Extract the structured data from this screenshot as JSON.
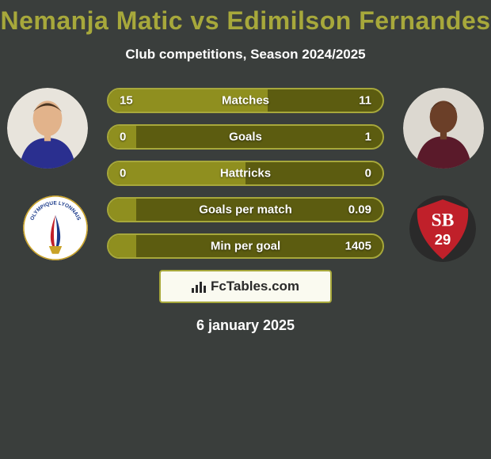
{
  "background_color": "#3a3e3c",
  "title": {
    "text": "Nemanja Matic vs Edimilson Fernandes",
    "color": "#a7a83b",
    "fontsize": 32,
    "fontweight": 800
  },
  "subtitle": {
    "text": "Club competitions, Season 2024/2025",
    "color": "#ffffff",
    "fontsize": 17,
    "fontweight": 600
  },
  "colors": {
    "bar_left": "#8f8f1f",
    "bar_right": "#5c5c10",
    "bar_border": "#a7a83b",
    "text_on_bar": "#ffffff"
  },
  "bars": [
    {
      "label": "Matches",
      "left_val": "15",
      "right_val": "11",
      "left_pct": 58,
      "right_pct": 42
    },
    {
      "label": "Goals",
      "left_val": "0",
      "right_val": "1",
      "left_pct": 10,
      "right_pct": 90
    },
    {
      "label": "Hattricks",
      "left_val": "0",
      "right_val": "0",
      "left_pct": 50,
      "right_pct": 50
    },
    {
      "label": "Goals per match",
      "left_val": "",
      "right_val": "0.09",
      "left_pct": 10,
      "right_pct": 90
    },
    {
      "label": "Min per goal",
      "left_val": "",
      "right_val": "1405",
      "left_pct": 10,
      "right_pct": 90
    }
  ],
  "brand": {
    "text": "FcTables.com",
    "bg": "#fafaf0",
    "color": "#2a2a2a",
    "border": "#a7a83b",
    "bar_color": "#2a2a2a"
  },
  "date": {
    "text": "6 january 2025",
    "color": "#ffffff"
  },
  "players": {
    "left": {
      "name": "Nemanja Matic",
      "avatar_bg": "#e8e4dc",
      "shirt": "#2a2f8f",
      "skin": "#e2b38b"
    },
    "right": {
      "name": "Edimilson Fernandes",
      "avatar_bg": "#dcd8d0",
      "shirt": "#5a1a2a",
      "skin": "#6b3f28"
    }
  },
  "clubs": {
    "left": {
      "name": "Olympique Lyonnais",
      "crest_bg": "#ffffff",
      "crest_ring": "#c9a227",
      "crest_blue": "#1a3a8a",
      "crest_red": "#c0202a",
      "crest_text": "OLYMPIQUE LYONNAIS"
    },
    "right": {
      "name": "Stade Brestois 29",
      "crest_bg": "#c0202a",
      "crest_ring": "#2a2a2a",
      "crest_text_top": "SB",
      "crest_text_bot": "29",
      "crest_text_color": "#ffffff"
    }
  }
}
